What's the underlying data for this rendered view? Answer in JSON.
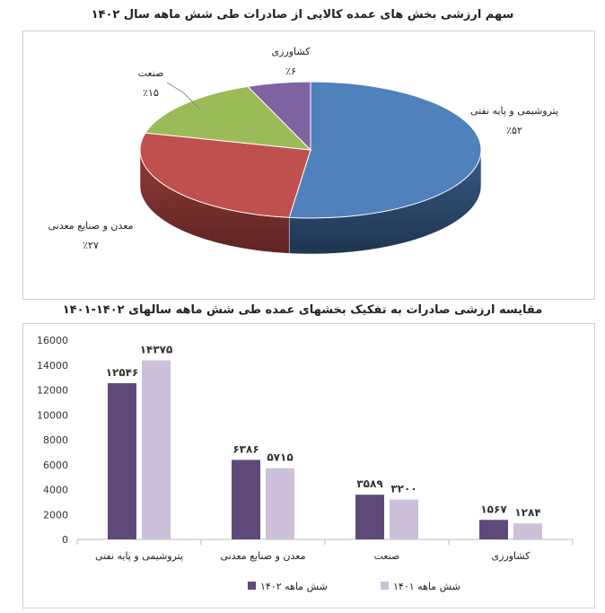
{
  "chart_data": [
    {
      "type": "pie",
      "title": "سهم ارزشی بخش های عمده کالایی از صادرات طی شش ماهه سال ۱۴۰۲",
      "slices": [
        {
          "label": "پتروشیمی و پایه نفتی",
          "value": 52,
          "value_label": "٪۵۲",
          "color": "#4F81BD"
        },
        {
          "label": "معدن و صنایع معدنی",
          "value": 27,
          "value_label": "٪۲۷",
          "color": "#C0504D"
        },
        {
          "label": "صنعت",
          "value": 15,
          "value_label": "٪۱۵",
          "color": "#9BBB59"
        },
        {
          "label": "کشاورزی",
          "value": 6,
          "value_label": "٪۶",
          "color": "#8064A2"
        }
      ]
    },
    {
      "type": "bar",
      "title": "مقایسه ارزشی صادرات به تفکیک بخشهای عمده طی شش ماهه سالهای ۱۴۰۲-۱۴۰۱",
      "categories": [
        "پتروشیمی و پایه نفتی",
        "معدن و صنایع معدنی",
        "صنعت",
        "کشاورزی"
      ],
      "series": [
        {
          "name": "شش ماهه ۱۴۰۲",
          "values": [
            12546,
            6386,
            3589,
            1567
          ],
          "value_labels": [
            "۱۲۵۴۶",
            "۶۳۸۶",
            "۳۵۸۹",
            "۱۵۶۷"
          ],
          "color": "#5F497A"
        },
        {
          "name": "شش ماهه ۱۴۰۱",
          "values": [
            14375,
            5715,
            3200,
            1284
          ],
          "value_labels": [
            "۱۴۳۷۵",
            "۵۷۱۵",
            "۳۲۰۰",
            "۱۲۸۴"
          ],
          "color": "#CCC0DA"
        }
      ],
      "ylim": [
        0,
        16000
      ],
      "yticks": [
        0,
        2000,
        4000,
        6000,
        8000,
        10000,
        12000,
        14000,
        16000
      ],
      "ytick_labels": [
        "0",
        "2000",
        "4000",
        "6000",
        "8000",
        "10000",
        "12000",
        "14000",
        "16000"
      ],
      "grid": false,
      "legend": "bottom"
    }
  ]
}
